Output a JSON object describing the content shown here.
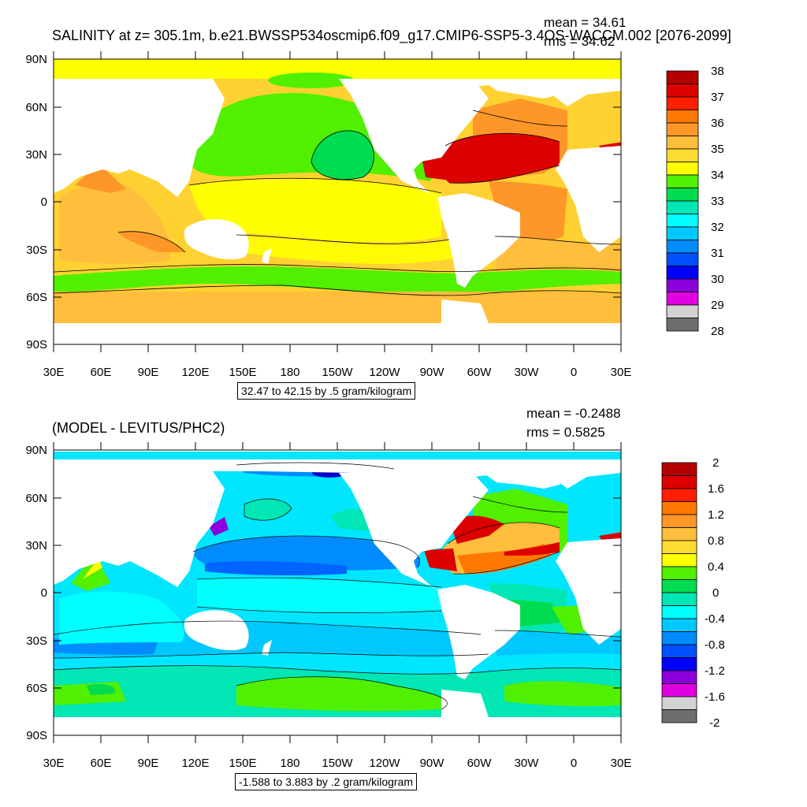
{
  "panels": [
    {
      "title": "SALINITY at z= 305.1m, b.e21.BWSSP534oscmip6.f09_g17.CMIP6-SSP5-3.4OS-WACCM.002 [2076-2099]",
      "stats": {
        "mean": "mean = 34.61",
        "rms": "rms = 34.62"
      },
      "y_ticks": [
        "90N",
        "60N",
        "30N",
        "0",
        "30S",
        "60S",
        "90S"
      ],
      "x_ticks": [
        "30E",
        "60E",
        "90E",
        "120E",
        "150E",
        "180",
        "150W",
        "120W",
        "90W",
        "60W",
        "30W",
        "0",
        "30E"
      ],
      "info": "32.47 to 42.15 by .5 gram/kilogram",
      "colorbar": {
        "labels": [
          "38",
          "37",
          "36",
          "35",
          "34",
          "33",
          "32",
          "31",
          "30",
          "29",
          "28"
        ],
        "colors": [
          "#b40000",
          "#dc0000",
          "#ff1e00",
          "#ff7800",
          "#ff9628",
          "#ffbe3c",
          "#ffdc32",
          "#ffff00",
          "#50f000",
          "#00dc50",
          "#00e6b4",
          "#00ffff",
          "#00c8ff",
          "#008cff",
          "#0000ff",
          "#8c00dc",
          "#e100e1",
          "#d2d2d2",
          "#6e6e6e"
        ]
      }
    },
    {
      "title": "(MODEL - LEVITUS/PHC2)",
      "stats": {
        "mean": "mean = -0.2488",
        "rms": "rms = 0.5825"
      },
      "y_ticks": [
        "90N",
        "60N",
        "30N",
        "0",
        "30S",
        "60S",
        "90S"
      ],
      "x_ticks": [
        "30E",
        "60E",
        "90E",
        "120E",
        "150E",
        "180",
        "150W",
        "120W",
        "90W",
        "60W",
        "30W",
        "0",
        "30E"
      ],
      "info": "-1.588 to 3.883 by .2 gram/kilogram",
      "colorbar": {
        "labels": [
          "2",
          "1.6",
          "1.2",
          "0.8",
          "0.4",
          "0",
          "-0.4",
          "-0.8",
          "-1.2",
          "-1.6",
          "-2"
        ],
        "colors": [
          "#b40000",
          "#dc0000",
          "#ff1e00",
          "#ff7800",
          "#ff9628",
          "#ffbe3c",
          "#ffdc32",
          "#ffff00",
          "#50f000",
          "#00dc50",
          "#00e6b4",
          "#00ffff",
          "#00c8ff",
          "#008cff",
          "#0000ff",
          "#8c00dc",
          "#e100e1",
          "#d2d2d2",
          "#6e6e6e"
        ]
      }
    }
  ]
}
